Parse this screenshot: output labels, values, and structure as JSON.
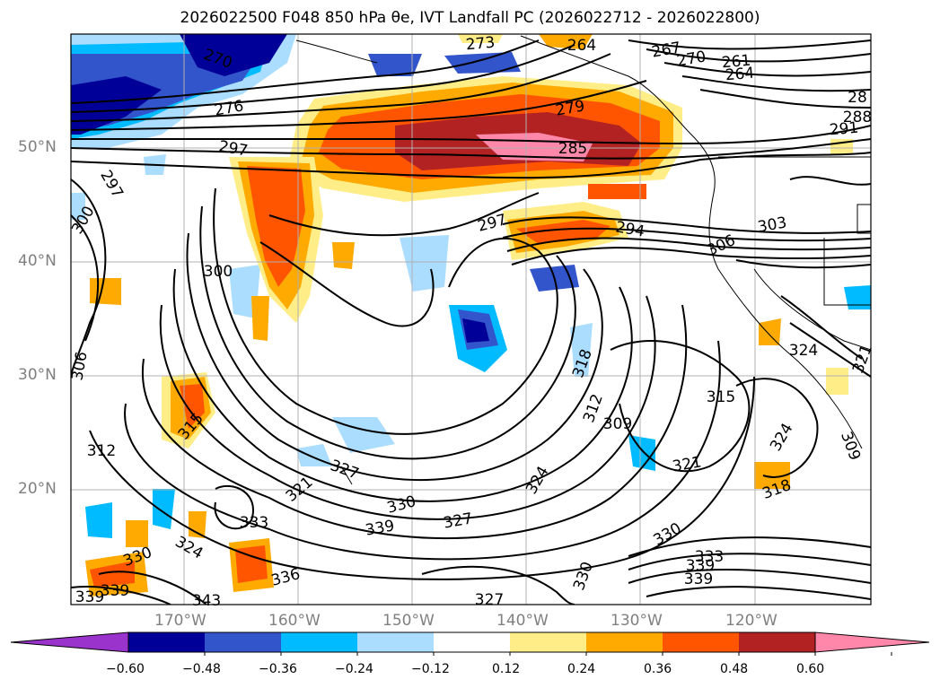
{
  "title": "2026022500 F048 850 hPa θe, IVT Landfall PC (2026022712 - 2026022800)",
  "map": {
    "lat_labels": [
      "50°N",
      "40°N",
      "30°N",
      "20°N"
    ],
    "lon_labels": [
      "170°W",
      "160°W",
      "150°W",
      "140°W",
      "130°W",
      "120°W"
    ],
    "contour_labels": [
      "273",
      "264",
      "267",
      "270",
      "261",
      "264",
      "270",
      "276",
      "279",
      "285",
      "28",
      "288",
      "291",
      "297",
      "297",
      "297",
      "294",
      "303",
      "306",
      "300",
      "300",
      "306",
      "318",
      "312",
      "309",
      "315",
      "321",
      "324",
      "324",
      "321",
      "309",
      "312",
      "315",
      "327",
      "321",
      "330",
      "333",
      "327",
      "324",
      "330",
      "324",
      "330",
      "339",
      "336",
      "343",
      "339",
      "339",
      "330",
      "327",
      "333",
      "339",
      "339",
      "318"
    ]
  },
  "colorbar": {
    "ticks": [
      "−0.60",
      "−0.48",
      "−0.36",
      "−0.24",
      "−0.12",
      "0.12",
      "0.24",
      "0.36",
      "0.48",
      "0.60"
    ],
    "colors": [
      "#9933cc",
      "#000099",
      "#3355cc",
      "#00bbff",
      "#aaddff",
      "#ffffff",
      "#ffee88",
      "#ffaa00",
      "#ff5500",
      "#b22222",
      "#ff88aa"
    ]
  }
}
